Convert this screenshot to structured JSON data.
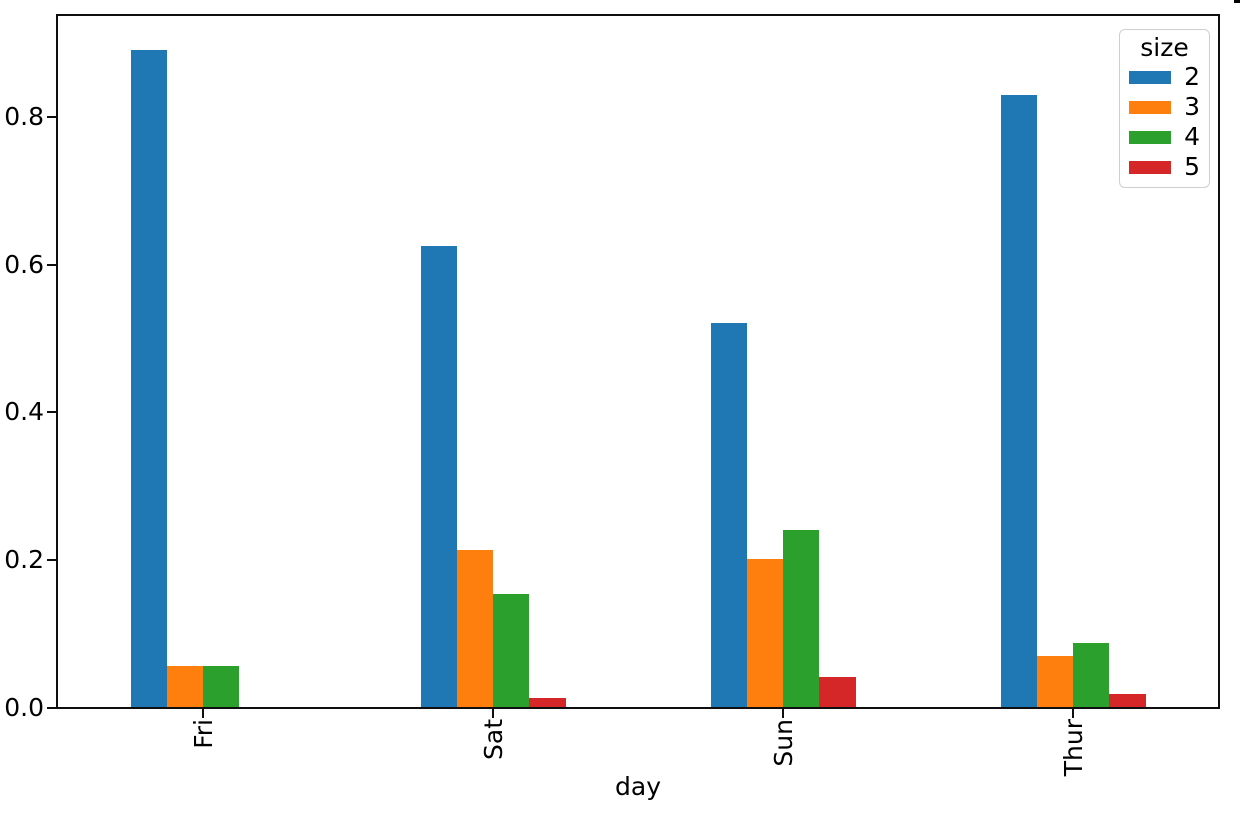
{
  "chart_data": {
    "type": "bar",
    "title": "",
    "xlabel": "day",
    "ylabel": "",
    "categories": [
      "Fri",
      "Sat",
      "Sun",
      "Thur"
    ],
    "series": [
      {
        "name": "2",
        "color": "#1f77b4",
        "values": [
          0.889,
          0.624,
          0.52,
          0.828
        ]
      },
      {
        "name": "3",
        "color": "#ff7f0e",
        "values": [
          0.056,
          0.212,
          0.2,
          0.069
        ]
      },
      {
        "name": "4",
        "color": "#2ca02c",
        "values": [
          0.056,
          0.153,
          0.24,
          0.086
        ]
      },
      {
        "name": "5",
        "color": "#d62728",
        "values": [
          0.0,
          0.012,
          0.04,
          0.017
        ]
      }
    ],
    "legend": {
      "title": "size",
      "position": "upper-right",
      "labels": [
        "2",
        "3",
        "4",
        "5"
      ]
    },
    "x_axis": {
      "label": "day",
      "tick_labels": [
        "Fri",
        "Sat",
        "Sun",
        "Thur"
      ],
      "tick_rotation_deg": 90
    },
    "y_axis": {
      "ticks": [
        0.0,
        0.2,
        0.4,
        0.6,
        0.8
      ],
      "tick_labels": [
        "0.0",
        "0.2",
        "0.4",
        "0.6",
        "0.8"
      ],
      "range": [
        0,
        0.935
      ]
    },
    "grid": false,
    "axis_color": "#0f0f0f",
    "background_color": "#ffffff"
  }
}
